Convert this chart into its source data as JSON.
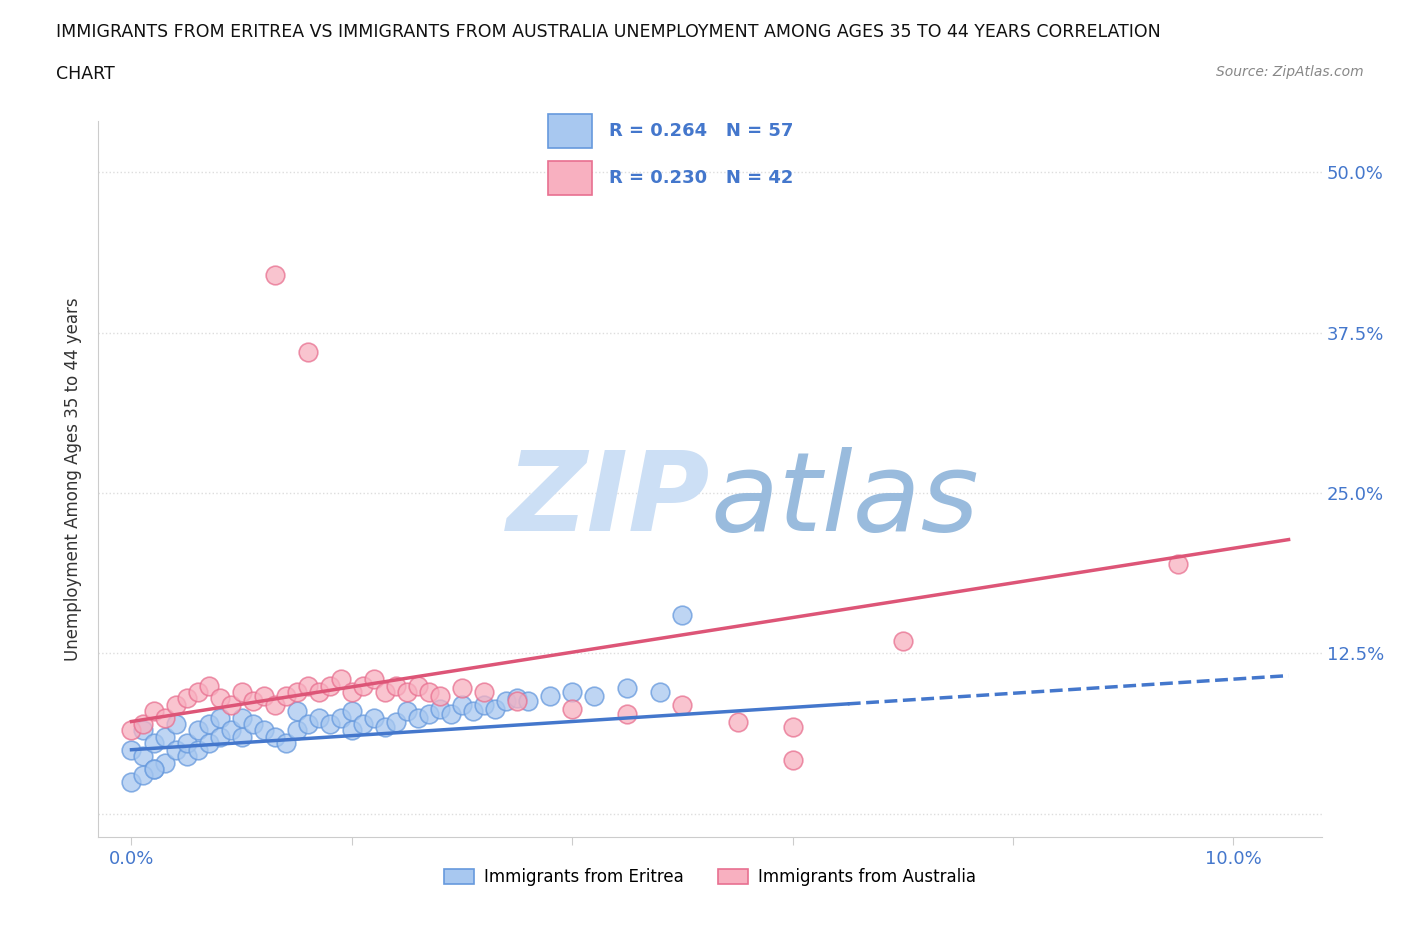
{
  "title_line1": "IMMIGRANTS FROM ERITREA VS IMMIGRANTS FROM AUSTRALIA UNEMPLOYMENT AMONG AGES 35 TO 44 YEARS CORRELATION",
  "title_line2": "CHART",
  "source_text": "Source: ZipAtlas.com",
  "ylabel": "Unemployment Among Ages 35 to 44 years",
  "xlim": [
    -0.003,
    0.108
  ],
  "ylim": [
    -0.018,
    0.54
  ],
  "eritrea_color": "#a8c8f0",
  "eritrea_edge": "#6699dd",
  "australia_color": "#f8b0c0",
  "australia_edge": "#e87090",
  "eritrea_R": 0.264,
  "eritrea_N": 57,
  "australia_R": 0.23,
  "australia_N": 42,
  "legend_label_eritrea": "Immigrants from Eritrea",
  "legend_label_australia": "Immigrants from Australia",
  "trend_blue": "#4477cc",
  "trend_pink": "#dd5577",
  "watermark_zip_color": "#ccdff5",
  "watermark_atlas_color": "#99bbdd",
  "grid_color": "#dddddd",
  "bg_color": "#ffffff",
  "axis_color": "#cccccc",
  "label_color_blue": "#4477cc",
  "legend_box_color": "#eef4ff",
  "legend_box_edge": "#bbccee"
}
